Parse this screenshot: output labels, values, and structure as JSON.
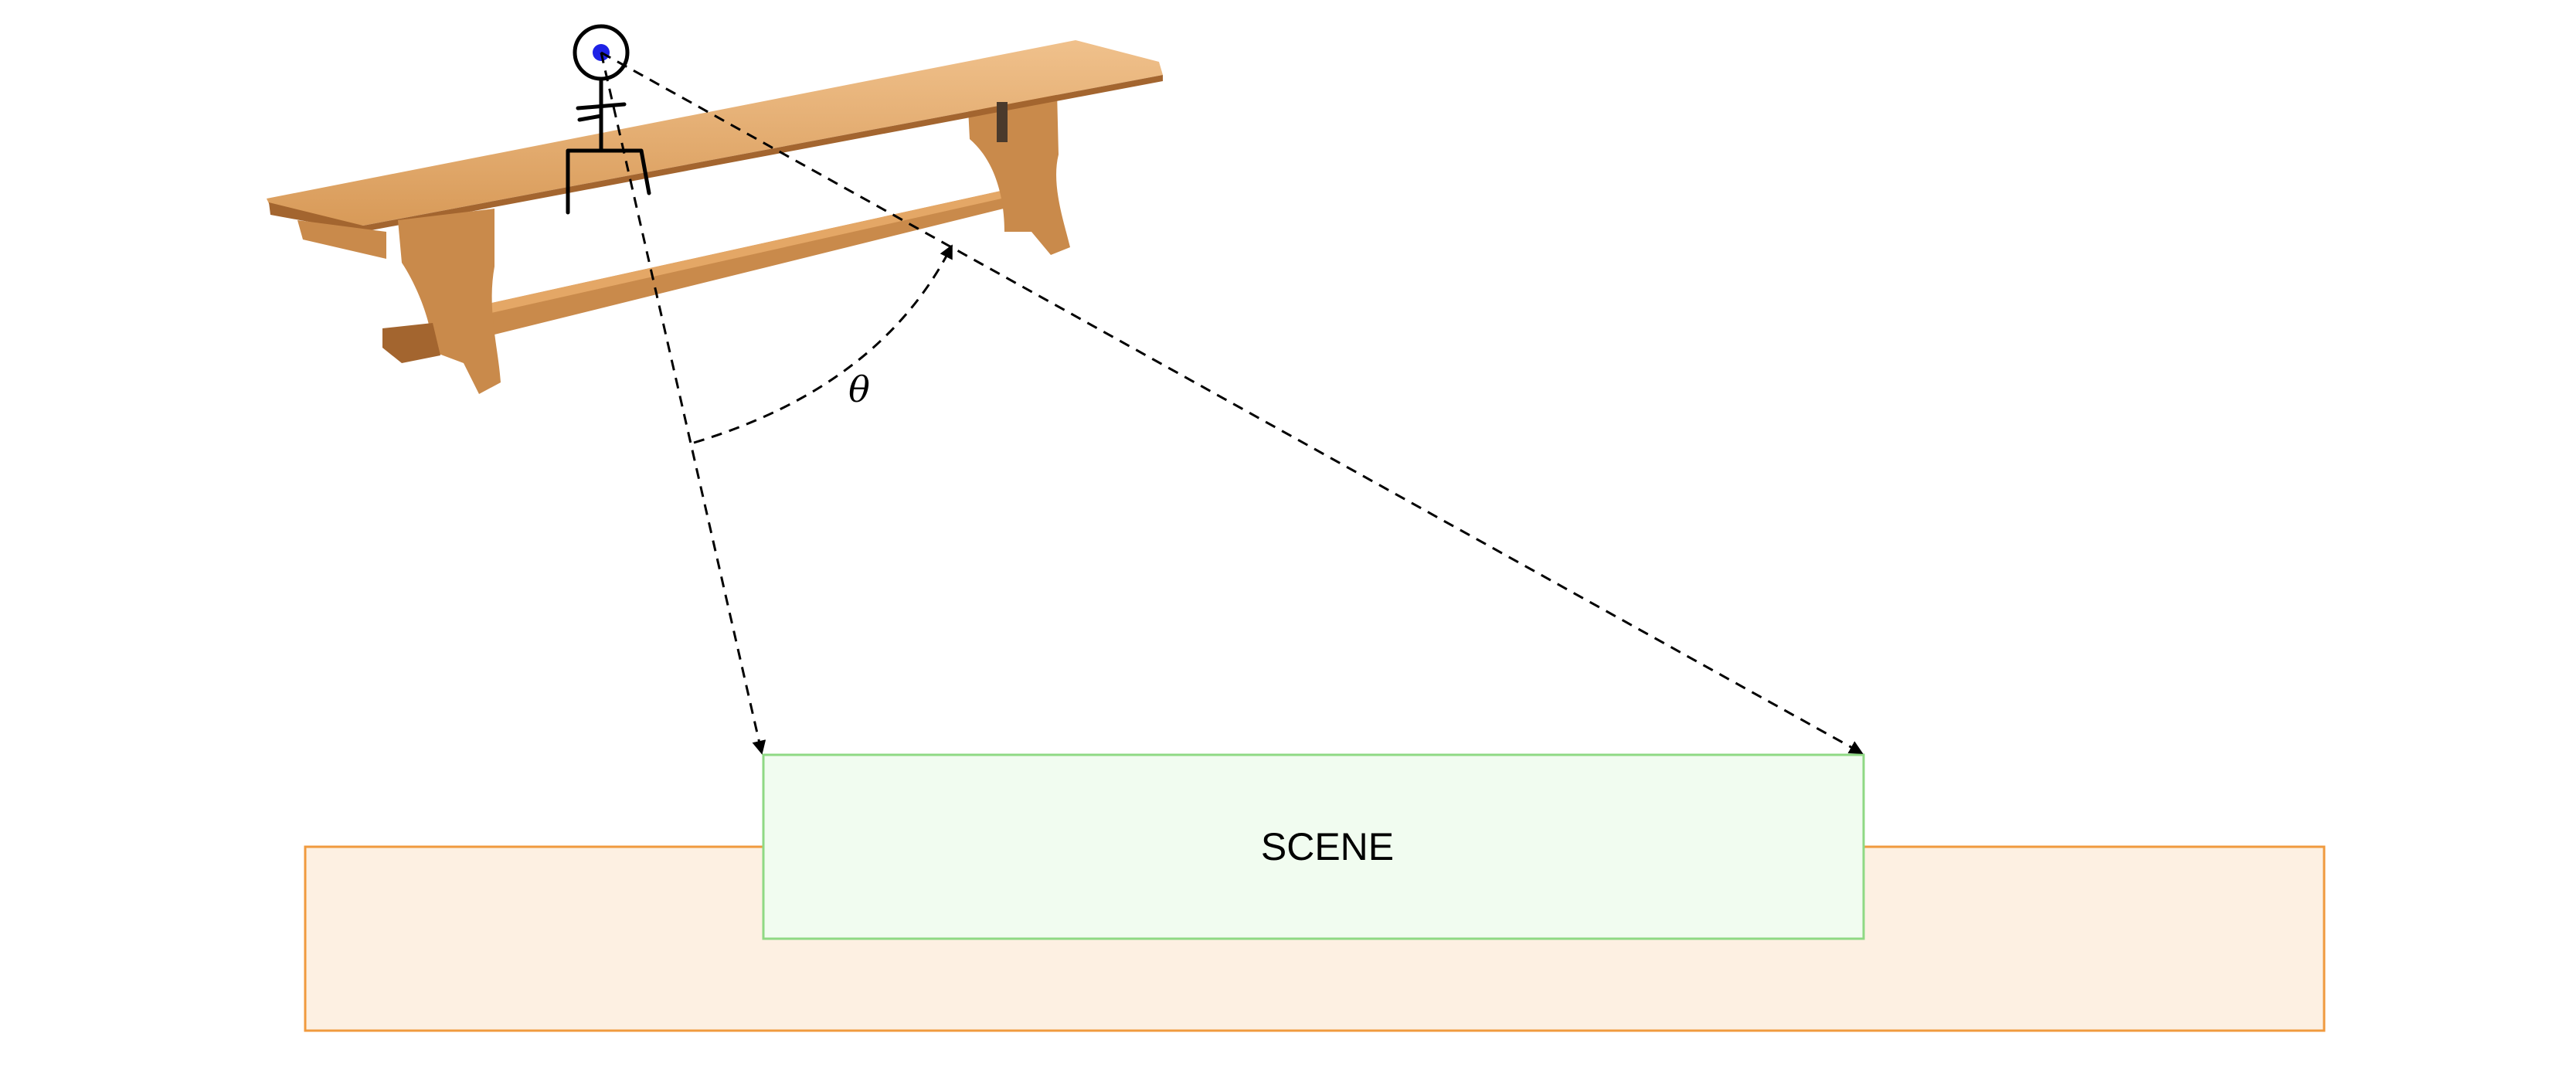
{
  "diagram": {
    "scene": {
      "label": "SCENE",
      "fill": "#f1fcf0",
      "stroke": "#8fd984"
    },
    "platform": {
      "fill": "#fdf0e2",
      "stroke": "#f09a3e"
    },
    "angle": {
      "label": "θ"
    },
    "observer": {
      "eye_color": "#1e22e6",
      "stroke": "#000000"
    },
    "bench": {
      "wood_light": "#e4a766",
      "wood_mid": "#c98a4b",
      "wood_dark": "#a3652f"
    }
  }
}
